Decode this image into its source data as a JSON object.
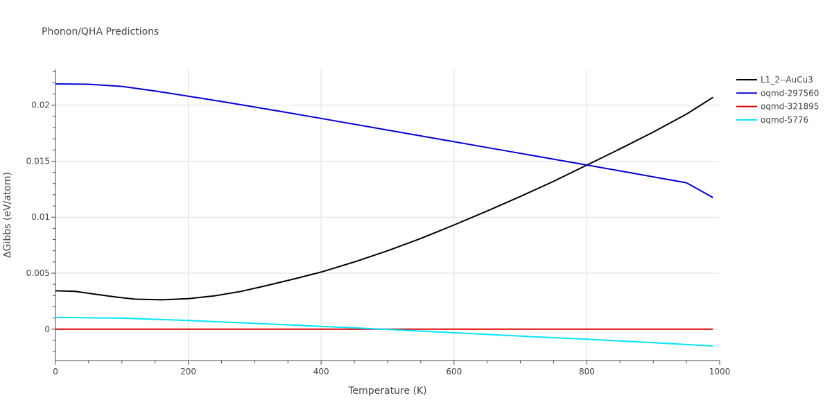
{
  "chart_data": {
    "type": "line",
    "title": "Phonon/QHA Predictions",
    "xlabel": "Temperature (K)",
    "ylabel": "ΔGibbs (eV/atom)",
    "xlim": [
      0,
      1000
    ],
    "ylim": [
      -0.0028,
      0.0232
    ],
    "xticks": [
      0,
      200,
      400,
      600,
      800,
      1000
    ],
    "xtick_labels": [
      "0",
      "200",
      "400",
      "600",
      "800",
      "1000"
    ],
    "yticks": [
      0,
      0.005,
      0.01,
      0.015,
      0.02
    ],
    "ytick_labels": [
      "0",
      "0.005",
      "0.01",
      "0.015",
      "0.02"
    ],
    "grid": true,
    "legend_position": "top-right",
    "series": [
      {
        "name": "L1_2--AuCu3",
        "color": "#000000",
        "x": [
          0,
          30,
          60,
          90,
          120,
          160,
          200,
          240,
          280,
          320,
          360,
          400,
          450,
          500,
          550,
          600,
          650,
          700,
          750,
          800,
          850,
          900,
          950,
          990
        ],
        "y": [
          0.00343,
          0.00337,
          0.00312,
          0.00288,
          0.00268,
          0.00262,
          0.00272,
          0.00298,
          0.00338,
          0.00392,
          0.0045,
          0.0051,
          0.006,
          0.007,
          0.0081,
          0.0093,
          0.01055,
          0.01185,
          0.0132,
          0.01465,
          0.0161,
          0.0176,
          0.0192,
          0.0207
        ]
      },
      {
        "name": "oqmd-297560",
        "color": "#0000dd",
        "x": [
          0,
          50,
          100,
          150,
          200,
          250,
          300,
          350,
          400,
          450,
          500,
          550,
          600,
          650,
          700,
          750,
          800,
          850,
          900,
          950,
          990
        ],
        "y": [
          0.0219,
          0.02187,
          0.02168,
          0.02127,
          0.0208,
          0.02033,
          0.01983,
          0.01933,
          0.01882,
          0.0183,
          0.01778,
          0.01726,
          0.01674,
          0.01622,
          0.0157,
          0.01518,
          0.01466,
          0.01413,
          0.0136,
          0.01307,
          0.01175
        ]
      },
      {
        "name": "oqmd-321895",
        "color": "#dd0000",
        "x": [
          0,
          250,
          500,
          750,
          990
        ],
        "y": [
          0,
          0,
          0,
          0,
          0
        ]
      },
      {
        "name": "oqmd-5776",
        "color": "#00e5ff",
        "x": [
          0,
          100,
          200,
          300,
          400,
          500,
          600,
          700,
          800,
          900,
          990
        ],
        "y": [
          0.00105,
          0.00098,
          0.00078,
          0.00052,
          0.00025,
          -2e-05,
          -0.00032,
          -0.00062,
          -0.0009,
          -0.0012,
          -0.0015
        ]
      }
    ]
  }
}
